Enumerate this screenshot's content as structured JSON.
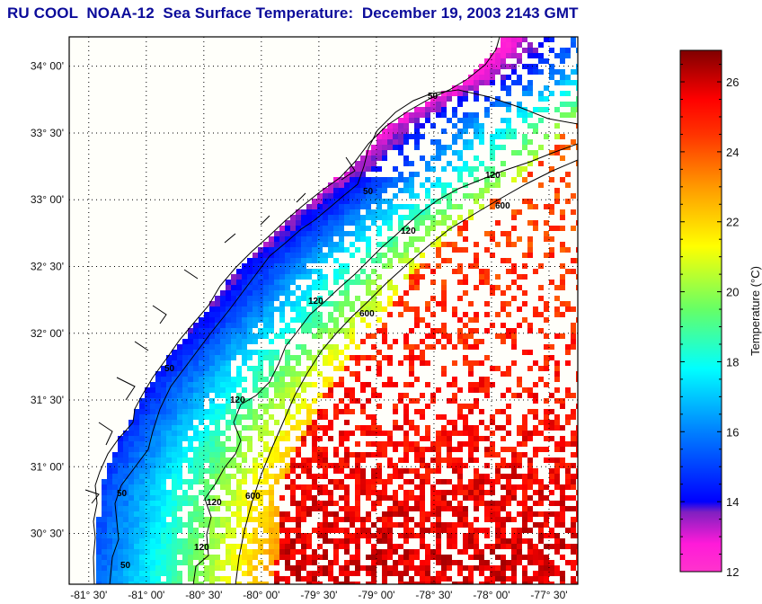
{
  "title": "RU COOL  NOAA-12  Sea Surface Temperature:  December 19, 2003 2143 GMT",
  "chart_data": {
    "type": "heatmap",
    "title": "RU COOL  NOAA-12  Sea Surface Temperature:  December 19, 2003 2143 GMT",
    "satellite": "NOAA-12",
    "date": "December 19, 2003",
    "time": "2143 GMT",
    "xlabel": "",
    "ylabel": "",
    "x_ticks": [
      "-81° 30'",
      "-81° 00'",
      "-80° 30'",
      "-80° 00'",
      "-79° 30'",
      "-79° 00'",
      "-78° 30'",
      "-78° 00'",
      "-77° 30'"
    ],
    "x_tick_values": [
      -81.5,
      -81.0,
      -80.5,
      -80.0,
      -79.5,
      -79.0,
      -78.5,
      -78.0,
      -77.5
    ],
    "y_ticks": [
      "34° 00'",
      "33° 30'",
      "33° 00'",
      "32° 30'",
      "32° 00'",
      "31° 30'",
      "31° 00'",
      "30° 30'"
    ],
    "y_tick_values": [
      34.0,
      33.5,
      33.0,
      32.5,
      32.0,
      31.5,
      31.0,
      30.5
    ],
    "xlim": [
      -81.67,
      -77.25
    ],
    "ylim": [
      30.12,
      34.22
    ],
    "grid": true,
    "colorbar": {
      "label": "Temperature (°C)",
      "ticks": [
        12,
        14,
        16,
        18,
        20,
        22,
        24,
        26
      ],
      "range": [
        12,
        26.9
      ],
      "colormap_stops": [
        {
          "value": 12.0,
          "color": "#ff33cc"
        },
        {
          "value": 12.8,
          "color": "#ff1ad9"
        },
        {
          "value": 13.7,
          "color": "#8020c0"
        },
        {
          "value": 14.0,
          "color": "#0000ff"
        },
        {
          "value": 16.0,
          "color": "#0080ff"
        },
        {
          "value": 17.8,
          "color": "#00ffff"
        },
        {
          "value": 19.5,
          "color": "#66ff66"
        },
        {
          "value": 21.3,
          "color": "#ffff00"
        },
        {
          "value": 23.0,
          "color": "#ff9900"
        },
        {
          "value": 24.5,
          "color": "#ff3300"
        },
        {
          "value": 25.5,
          "color": "#ff0000"
        },
        {
          "value": 26.9,
          "color": "#800000"
        }
      ]
    },
    "isobath_labels": [
      "50",
      "120",
      "600"
    ],
    "isobaths_m": [
      50,
      120,
      600
    ],
    "summary": "Cold (12-14 °C) water along coast of Georgia/South Carolina, grading offshore through 16-20 °C shelf water to 24-26 °C Gulf Stream water east of the 600 m isobath; much of offshore area cloud-masked (white)."
  }
}
